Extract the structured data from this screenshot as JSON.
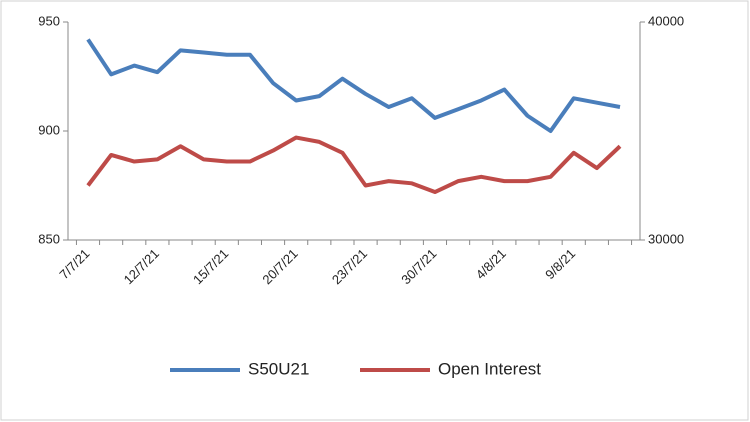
{
  "chart_data": {
    "type": "line",
    "categories": [
      "7/7/21",
      null,
      null,
      "12/7/21",
      null,
      null,
      "15/7/21",
      null,
      null,
      "20/7/21",
      null,
      null,
      "23/7/21",
      null,
      null,
      "30/7/21",
      null,
      null,
      "4/8/21",
      null,
      null,
      "9/8/21",
      null,
      null
    ],
    "series": [
      {
        "name": "S50U21",
        "color": "#4a7ebb",
        "values": [
          942,
          926,
          930,
          927,
          937,
          936,
          935,
          935,
          922,
          914,
          916,
          924,
          917,
          911,
          915,
          906,
          910,
          914,
          919,
          907,
          900,
          915,
          913,
          911
        ]
      },
      {
        "name": "Open Interest",
        "color": "#be4b48",
        "axis": "y2",
        "values": [
          32500,
          33900,
          33600,
          33700,
          34300,
          33700,
          33600,
          33600,
          34100,
          34700,
          34500,
          34000,
          32500,
          32700,
          32600,
          32200,
          32700,
          32900,
          32700,
          32700,
          32900,
          34000,
          33300,
          34300
        ]
      }
    ],
    "ylim": [
      850,
      950
    ],
    "yticks": [
      850,
      900,
      950
    ],
    "y2lim": [
      30000,
      40000
    ],
    "y2ticks": [
      30000,
      40000
    ],
    "legend": "bottom"
  }
}
